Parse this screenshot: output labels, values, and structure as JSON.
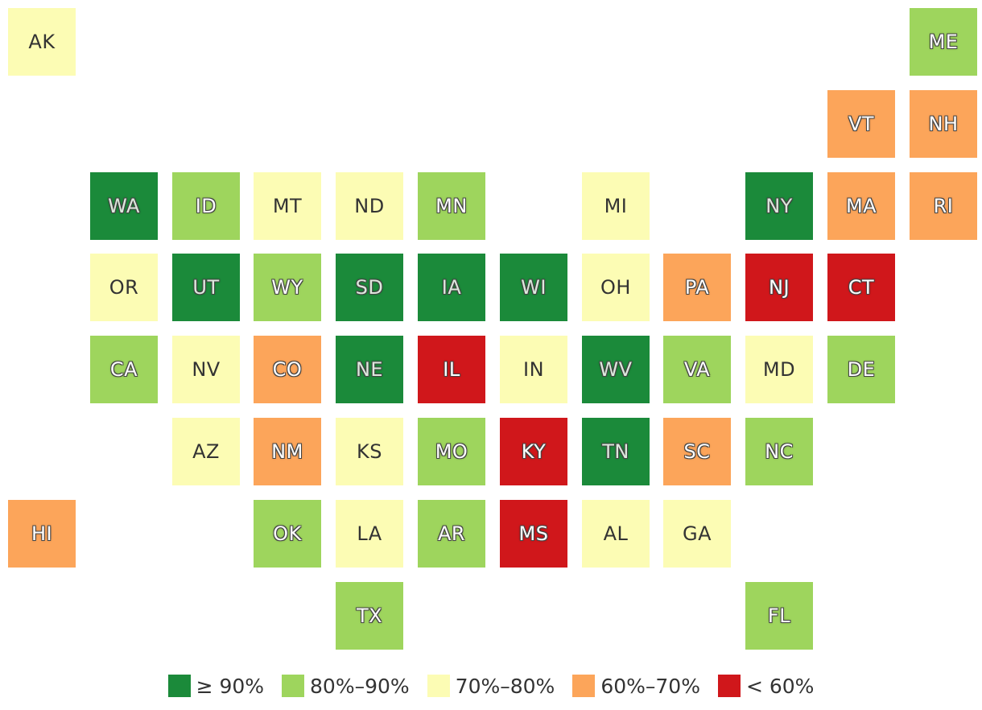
{
  "chart_data": {
    "type": "tile-map",
    "legend": [
      {
        "key": "g90",
        "label": "≥ 90%",
        "color": "#1b8a3a"
      },
      {
        "key": "g80",
        "label": "80%–90%",
        "color": "#9ed55d"
      },
      {
        "key": "g70",
        "label": "70%–80%",
        "color": "#fcfcb4"
      },
      {
        "key": "g60",
        "label": "60%–70%",
        "color": "#fca55a"
      },
      {
        "key": "lt60",
        "label": "< 60%",
        "color": "#d0171b"
      }
    ],
    "states": [
      {
        "abbr": "AK",
        "bin": "g70",
        "row": 0,
        "col": 0
      },
      {
        "abbr": "ME",
        "bin": "g80",
        "row": 0,
        "col": 11
      },
      {
        "abbr": "VT",
        "bin": "g60",
        "row": 1,
        "col": 10
      },
      {
        "abbr": "NH",
        "bin": "g60",
        "row": 1,
        "col": 11
      },
      {
        "abbr": "WA",
        "bin": "g90",
        "row": 2,
        "col": 1
      },
      {
        "abbr": "ID",
        "bin": "g80",
        "row": 2,
        "col": 2
      },
      {
        "abbr": "MT",
        "bin": "g70",
        "row": 2,
        "col": 3
      },
      {
        "abbr": "ND",
        "bin": "g70",
        "row": 2,
        "col": 4
      },
      {
        "abbr": "MN",
        "bin": "g80",
        "row": 2,
        "col": 5
      },
      {
        "abbr": "MI",
        "bin": "g70",
        "row": 2,
        "col": 7
      },
      {
        "abbr": "NY",
        "bin": "g90",
        "row": 2,
        "col": 9
      },
      {
        "abbr": "MA",
        "bin": "g60",
        "row": 2,
        "col": 10
      },
      {
        "abbr": "RI",
        "bin": "g60",
        "row": 2,
        "col": 11
      },
      {
        "abbr": "OR",
        "bin": "g70",
        "row": 3,
        "col": 1
      },
      {
        "abbr": "UT",
        "bin": "g90",
        "row": 3,
        "col": 2
      },
      {
        "abbr": "WY",
        "bin": "g80",
        "row": 3,
        "col": 3
      },
      {
        "abbr": "SD",
        "bin": "g90",
        "row": 3,
        "col": 4
      },
      {
        "abbr": "IA",
        "bin": "g90",
        "row": 3,
        "col": 5
      },
      {
        "abbr": "WI",
        "bin": "g90",
        "row": 3,
        "col": 6
      },
      {
        "abbr": "OH",
        "bin": "g70",
        "row": 3,
        "col": 7
      },
      {
        "abbr": "PA",
        "bin": "g60",
        "row": 3,
        "col": 8
      },
      {
        "abbr": "NJ",
        "bin": "lt60",
        "row": 3,
        "col": 9
      },
      {
        "abbr": "CT",
        "bin": "lt60",
        "row": 3,
        "col": 10
      },
      {
        "abbr": "CA",
        "bin": "g80",
        "row": 4,
        "col": 1
      },
      {
        "abbr": "NV",
        "bin": "g70",
        "row": 4,
        "col": 2
      },
      {
        "abbr": "CO",
        "bin": "g60",
        "row": 4,
        "col": 3
      },
      {
        "abbr": "NE",
        "bin": "g90",
        "row": 4,
        "col": 4
      },
      {
        "abbr": "IL",
        "bin": "lt60",
        "row": 4,
        "col": 5
      },
      {
        "abbr": "IN",
        "bin": "g70",
        "row": 4,
        "col": 6
      },
      {
        "abbr": "WV",
        "bin": "g90",
        "row": 4,
        "col": 7
      },
      {
        "abbr": "VA",
        "bin": "g80",
        "row": 4,
        "col": 8
      },
      {
        "abbr": "MD",
        "bin": "g70",
        "row": 4,
        "col": 9
      },
      {
        "abbr": "DE",
        "bin": "g80",
        "row": 4,
        "col": 10
      },
      {
        "abbr": "AZ",
        "bin": "g70",
        "row": 5,
        "col": 2
      },
      {
        "abbr": "NM",
        "bin": "g60",
        "row": 5,
        "col": 3
      },
      {
        "abbr": "KS",
        "bin": "g70",
        "row": 5,
        "col": 4
      },
      {
        "abbr": "MO",
        "bin": "g80",
        "row": 5,
        "col": 5
      },
      {
        "abbr": "KY",
        "bin": "lt60",
        "row": 5,
        "col": 6
      },
      {
        "abbr": "TN",
        "bin": "g90",
        "row": 5,
        "col": 7
      },
      {
        "abbr": "SC",
        "bin": "g60",
        "row": 5,
        "col": 8
      },
      {
        "abbr": "NC",
        "bin": "g80",
        "row": 5,
        "col": 9
      },
      {
        "abbr": "HI",
        "bin": "g60",
        "row": 6,
        "col": 0
      },
      {
        "abbr": "OK",
        "bin": "g80",
        "row": 6,
        "col": 3
      },
      {
        "abbr": "LA",
        "bin": "g70",
        "row": 6,
        "col": 4
      },
      {
        "abbr": "AR",
        "bin": "g80",
        "row": 6,
        "col": 5
      },
      {
        "abbr": "MS",
        "bin": "lt60",
        "row": 6,
        "col": 6
      },
      {
        "abbr": "AL",
        "bin": "g70",
        "row": 6,
        "col": 7
      },
      {
        "abbr": "GA",
        "bin": "g70",
        "row": 6,
        "col": 8
      },
      {
        "abbr": "TX",
        "bin": "g80",
        "row": 7,
        "col": 4
      },
      {
        "abbr": "FL",
        "bin": "g80",
        "row": 7,
        "col": 9
      }
    ]
  }
}
